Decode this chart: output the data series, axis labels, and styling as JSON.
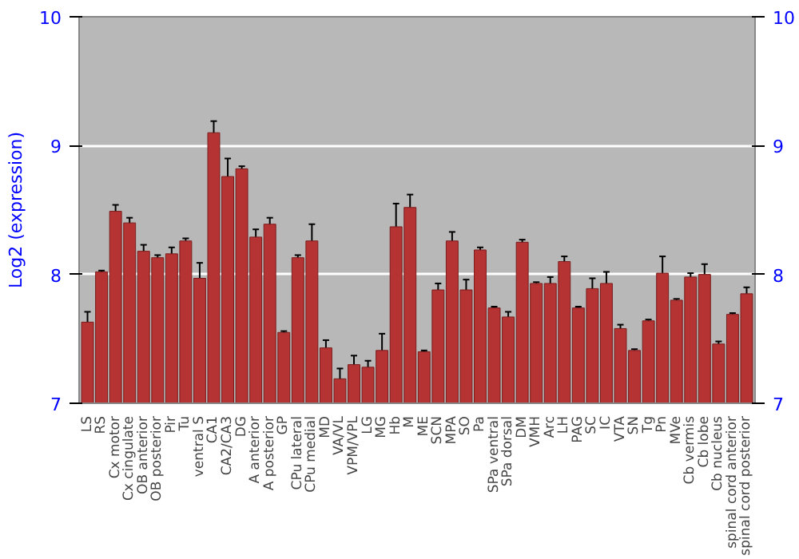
{
  "chart_data": {
    "type": "bar",
    "ylabel": "Log2 (expression)",
    "categories": [
      "LS",
      "RS",
      "Cx motor",
      "Cx cingulate",
      "OB anterior",
      "OB posterior",
      "Pir",
      "Tu",
      "ventral S",
      "CA1",
      "CA2/CA3",
      "DG",
      "A anterior",
      "A posterior",
      "GP",
      "CPu lateral",
      "CPu medial",
      "MD",
      "VA/VL",
      "VPM/VPL",
      "LG",
      "MG",
      "Hb",
      "M",
      "ME",
      "SCN",
      "MPA",
      "SO",
      "Pa",
      "SPa ventral",
      "SPa dorsal",
      "DM",
      "VMH",
      "Arc",
      "LH",
      "PAG",
      "SC",
      "IC",
      "VTA",
      "SN",
      "Tg",
      "Pn",
      "MVe",
      "Cb vermis",
      "Cb lobe",
      "Cb nucleus",
      "spinal cord anterior",
      "spinal cord posterior"
    ],
    "values": [
      7.63,
      8.02,
      8.49,
      8.4,
      8.18,
      8.13,
      8.16,
      8.26,
      7.97,
      9.1,
      8.76,
      8.82,
      8.29,
      8.39,
      7.55,
      8.13,
      8.26,
      7.43,
      7.19,
      7.3,
      7.28,
      7.41,
      8.37,
      8.52,
      7.4,
      7.88,
      8.26,
      7.88,
      8.19,
      7.74,
      7.67,
      8.25,
      7.93,
      7.93,
      8.1,
      7.74,
      7.89,
      7.93,
      7.58,
      7.41,
      7.64,
      8.01,
      7.8,
      7.98,
      8.0,
      7.46,
      7.69,
      7.85
    ],
    "errors": [
      0.08,
      0.01,
      0.05,
      0.04,
      0.05,
      0.02,
      0.05,
      0.02,
      0.12,
      0.09,
      0.14,
      0.02,
      0.06,
      0.05,
      0.01,
      0.02,
      0.13,
      0.06,
      0.08,
      0.07,
      0.05,
      0.13,
      0.18,
      0.1,
      0.01,
      0.05,
      0.07,
      0.08,
      0.02,
      0.01,
      0.04,
      0.02,
      0.01,
      0.05,
      0.04,
      0.01,
      0.08,
      0.09,
      0.03,
      0.01,
      0.01,
      0.13,
      0.01,
      0.03,
      0.08,
      0.02,
      0.01,
      0.05
    ],
    "color": "#b53333",
    "ylim": [
      7,
      10
    ],
    "yticks": [
      7,
      8,
      9,
      10
    ],
    "y2lim": [
      7,
      10
    ],
    "y2ticks": [
      7,
      8,
      9,
      10
    ],
    "grid": "y"
  }
}
